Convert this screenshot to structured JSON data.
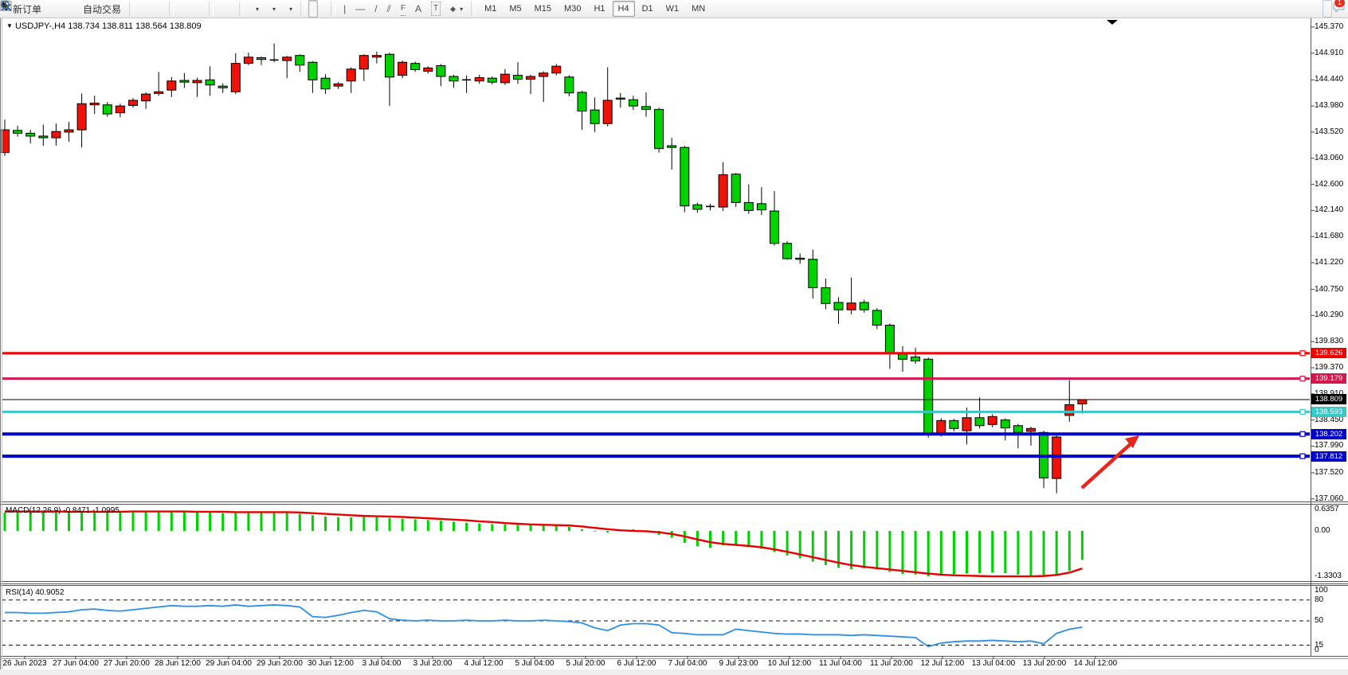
{
  "toolbar": {
    "new_order_label": "新订单",
    "auto_trading_label": "自动交易",
    "timeframes": [
      "M1",
      "M5",
      "M15",
      "M30",
      "H1",
      "H4",
      "D1",
      "W1",
      "MN"
    ],
    "active_timeframe": "H4",
    "notification_count": "1",
    "tool_glyphs": {
      "vertical_line": "|",
      "horizontal_line": "—",
      "trend_line": "/",
      "channel": "⫽",
      "fibonacci": "F",
      "text": "A",
      "text_label": "T",
      "shapes": "◆"
    }
  },
  "chart": {
    "symbol_title": "USDJPY-,H4",
    "ohlc_text": "138.734 138.811 138.564 138.809",
    "title_arrow": "▼",
    "macd_label": "MACD(12,26,9) -0.8471 -1.0995",
    "rsi_label": "RSI(14) 40.9052",
    "price_axis": [
      "145.370",
      "144.910",
      "144.440",
      "143.980",
      "143.520",
      "143.060",
      "142.600",
      "142.140",
      "141.680",
      "141.220",
      "140.750",
      "140.290",
      "139.830",
      "139.370",
      "138.910",
      "138.450",
      "137.990",
      "137.520",
      "137.060"
    ],
    "macd_axis": [
      "0.6357",
      "0.00",
      "-1.3303"
    ],
    "rsi_axis": [
      "100",
      "80",
      "50",
      "15",
      "0"
    ],
    "time_axis": [
      "26 Jun 2023",
      "27 Jun 04:00",
      "27 Jun 20:00",
      "28 Jun 12:00",
      "29 Jun 04:00",
      "29 Jun 20:00",
      "30 Jun 12:00",
      "3 Jul 04:00",
      "3 Jul 20:00",
      "4 Jul 12:00",
      "5 Jul 04:00",
      "5 Jul 20:00",
      "6 Jul 12:00",
      "7 Jul 04:00",
      "9 Jul 23:00",
      "10 Jul 12:00",
      "11 Jul 04:00",
      "11 Jul 20:00",
      "12 Jul 12:00",
      "13 Jul 04:00",
      "13 Jul 20:00",
      "14 Jul 12:00"
    ],
    "price_lines": [
      {
        "price": 139.626,
        "label": "139.626",
        "color": "#f50000",
        "width": 3
      },
      {
        "price": 139.179,
        "label": "139.179",
        "color": "#d6174b",
        "width": 3
      },
      {
        "price": 138.593,
        "label": "138.593",
        "color": "#3cc7c7",
        "width": 3
      },
      {
        "price": 138.202,
        "label": "138.202",
        "color": "#0000c8",
        "width": 4
      },
      {
        "price": 137.812,
        "label": "137.812",
        "color": "#0000c8",
        "width": 4
      }
    ],
    "current_price": {
      "price": 138.809,
      "label": "138.809",
      "color": "#000000"
    }
  },
  "annotation": {
    "type": "arrow-up-right",
    "color": "#e8251b"
  },
  "chart_data": {
    "type": "candlestick",
    "symbol": "USDJPY",
    "timeframe": "H4",
    "ylim": [
      137.06,
      145.37
    ],
    "colors": {
      "bull": "#ef1208",
      "bear": "#00d200",
      "wick": "#000000",
      "macd_hist": "#00d200",
      "macd_signal": "#e80000",
      "rsi_line": "#2a8fe8"
    },
    "candles_ohlc": [
      [
        143.16,
        143.74,
        143.1,
        143.56
      ],
      [
        143.55,
        143.63,
        143.44,
        143.5
      ],
      [
        143.5,
        143.56,
        143.32,
        143.45
      ],
      [
        143.45,
        143.65,
        143.28,
        143.42
      ],
      [
        143.42,
        143.67,
        143.28,
        143.53
      ],
      [
        143.52,
        143.7,
        143.35,
        143.56
      ],
      [
        143.56,
        144.2,
        143.25,
        144.02
      ],
      [
        144.0,
        144.16,
        143.84,
        144.03
      ],
      [
        144.0,
        144.05,
        143.79,
        143.84
      ],
      [
        143.86,
        144.02,
        143.78,
        143.98
      ],
      [
        143.99,
        144.12,
        143.95,
        144.08
      ],
      [
        144.07,
        144.22,
        143.93,
        144.19
      ],
      [
        144.2,
        144.58,
        144.16,
        144.23
      ],
      [
        144.26,
        144.49,
        144.14,
        144.42
      ],
      [
        144.43,
        144.56,
        144.3,
        144.4
      ],
      [
        144.39,
        144.48,
        144.14,
        144.43
      ],
      [
        144.44,
        144.68,
        144.16,
        144.35
      ],
      [
        144.33,
        144.38,
        144.21,
        144.3
      ],
      [
        144.23,
        144.91,
        144.19,
        144.73
      ],
      [
        144.73,
        144.92,
        144.7,
        144.84
      ],
      [
        144.83,
        144.85,
        144.7,
        144.8
      ],
      [
        144.79,
        145.08,
        144.75,
        144.79
      ],
      [
        144.78,
        144.86,
        144.47,
        144.84
      ],
      [
        144.87,
        144.89,
        144.58,
        144.7
      ],
      [
        144.75,
        144.77,
        144.21,
        144.44
      ],
      [
        144.47,
        144.54,
        144.19,
        144.28
      ],
      [
        144.33,
        144.4,
        144.28,
        144.37
      ],
      [
        144.42,
        144.66,
        144.21,
        144.63
      ],
      [
        144.63,
        144.89,
        144.42,
        144.87
      ],
      [
        144.84,
        144.94,
        144.73,
        144.87
      ],
      [
        144.89,
        144.92,
        143.98,
        144.49
      ],
      [
        144.52,
        144.78,
        144.47,
        144.75
      ],
      [
        144.73,
        144.76,
        144.58,
        144.62
      ],
      [
        144.59,
        144.68,
        144.55,
        144.65
      ],
      [
        144.69,
        144.72,
        144.33,
        144.5
      ],
      [
        144.5,
        144.53,
        144.3,
        144.42
      ],
      [
        144.44,
        144.52,
        144.21,
        144.43
      ],
      [
        144.42,
        144.53,
        144.37,
        144.48
      ],
      [
        144.47,
        144.5,
        144.36,
        144.4
      ],
      [
        144.39,
        144.63,
        144.35,
        144.54
      ],
      [
        144.52,
        144.75,
        144.37,
        144.45
      ],
      [
        144.45,
        144.53,
        144.19,
        144.5
      ],
      [
        144.5,
        144.59,
        144.05,
        144.56
      ],
      [
        144.56,
        144.72,
        144.52,
        144.68
      ],
      [
        144.49,
        144.52,
        144.15,
        144.21
      ],
      [
        144.22,
        144.25,
        143.56,
        143.89
      ],
      [
        143.91,
        144.13,
        143.52,
        143.67
      ],
      [
        143.67,
        144.66,
        143.62,
        144.08
      ],
      [
        144.12,
        144.21,
        143.95,
        144.1
      ],
      [
        144.09,
        144.16,
        143.91,
        143.98
      ],
      [
        143.97,
        144.22,
        143.79,
        143.92
      ],
      [
        143.92,
        143.95,
        143.16,
        143.23
      ],
      [
        143.28,
        143.42,
        142.86,
        143.25
      ],
      [
        143.25,
        143.28,
        142.11,
        142.22
      ],
      [
        142.24,
        142.28,
        142.1,
        142.16
      ],
      [
        142.21,
        142.26,
        142.14,
        142.2
      ],
      [
        142.2,
        142.99,
        142.13,
        142.77
      ],
      [
        142.78,
        142.8,
        142.2,
        142.28
      ],
      [
        142.28,
        142.6,
        142.08,
        142.14
      ],
      [
        142.26,
        142.55,
        142.06,
        142.15
      ],
      [
        142.13,
        142.48,
        141.52,
        141.56
      ],
      [
        141.56,
        141.6,
        141.27,
        141.29
      ],
      [
        141.3,
        141.38,
        141.2,
        141.28
      ],
      [
        141.28,
        141.45,
        140.59,
        140.78
      ],
      [
        140.78,
        140.94,
        140.4,
        140.5
      ],
      [
        140.52,
        140.61,
        140.14,
        140.39
      ],
      [
        140.39,
        140.96,
        140.31,
        140.51
      ],
      [
        140.52,
        140.57,
        140.34,
        140.39
      ],
      [
        140.38,
        140.42,
        140.05,
        140.12
      ],
      [
        140.12,
        140.15,
        139.35,
        139.63
      ],
      [
        139.61,
        139.75,
        139.3,
        139.52
      ],
      [
        139.56,
        139.72,
        139.44,
        139.49
      ],
      [
        139.52,
        139.55,
        138.14,
        138.21
      ],
      [
        138.21,
        138.48,
        138.16,
        138.44
      ],
      [
        138.44,
        138.47,
        138.25,
        138.3
      ],
      [
        138.26,
        138.67,
        138.02,
        138.49
      ],
      [
        138.49,
        138.85,
        138.3,
        138.35
      ],
      [
        138.37,
        138.55,
        138.32,
        138.51
      ],
      [
        138.45,
        138.48,
        138.09,
        138.31
      ],
      [
        138.35,
        138.38,
        137.95,
        138.23
      ],
      [
        138.25,
        138.33,
        138.0,
        138.3
      ],
      [
        138.23,
        138.26,
        137.25,
        137.43
      ],
      [
        137.42,
        138.2,
        137.16,
        138.15
      ],
      [
        138.53,
        139.15,
        138.42,
        138.72
      ],
      [
        138.734,
        138.811,
        138.564,
        138.809
      ]
    ],
    "macd": {
      "ylim": [
        -1.3303,
        0.6357
      ],
      "histogram": [
        0.54,
        0.55,
        0.55,
        0.54,
        0.53,
        0.54,
        0.57,
        0.58,
        0.57,
        0.56,
        0.57,
        0.58,
        0.58,
        0.57,
        0.56,
        0.55,
        0.54,
        0.52,
        0.55,
        0.57,
        0.56,
        0.55,
        0.53,
        0.5,
        0.46,
        0.42,
        0.4,
        0.4,
        0.41,
        0.42,
        0.38,
        0.36,
        0.34,
        0.32,
        0.3,
        0.27,
        0.24,
        0.22,
        0.2,
        0.19,
        0.18,
        0.17,
        0.16,
        0.16,
        0.12,
        0.05,
        -0.02,
        -0.05,
        0.02,
        0.05,
        0.02,
        -0.12,
        -0.2,
        -0.35,
        -0.45,
        -0.5,
        -0.42,
        -0.4,
        -0.45,
        -0.52,
        -0.62,
        -0.72,
        -0.8,
        -0.9,
        -1.0,
        -1.08,
        -1.12,
        -1.1,
        -1.13,
        -1.2,
        -1.26,
        -1.28,
        -1.33,
        -1.3,
        -1.27,
        -1.25,
        -1.24,
        -1.22,
        -1.24,
        -1.28,
        -1.31,
        -1.33,
        -1.28,
        -1.17,
        -0.85
      ],
      "signal": [
        0.57,
        0.57,
        0.57,
        0.57,
        0.57,
        0.56,
        0.56,
        0.56,
        0.56,
        0.56,
        0.57,
        0.57,
        0.57,
        0.57,
        0.57,
        0.56,
        0.56,
        0.56,
        0.55,
        0.55,
        0.55,
        0.55,
        0.55,
        0.54,
        0.52,
        0.5,
        0.48,
        0.46,
        0.44,
        0.43,
        0.42,
        0.41,
        0.39,
        0.37,
        0.35,
        0.33,
        0.31,
        0.28,
        0.26,
        0.23,
        0.21,
        0.19,
        0.18,
        0.17,
        0.16,
        0.13,
        0.09,
        0.05,
        0.02,
        0.0,
        -0.01,
        -0.04,
        -0.09,
        -0.16,
        -0.25,
        -0.33,
        -0.38,
        -0.41,
        -0.44,
        -0.48,
        -0.54,
        -0.61,
        -0.69,
        -0.77,
        -0.85,
        -0.93,
        -1.0,
        -1.05,
        -1.09,
        -1.13,
        -1.17,
        -1.21,
        -1.25,
        -1.28,
        -1.3,
        -1.31,
        -1.32,
        -1.33,
        -1.33,
        -1.33,
        -1.33,
        -1.32,
        -1.29,
        -1.22,
        -1.1
      ]
    },
    "rsi": {
      "ylim": [
        0,
        100
      ],
      "levels": [
        80,
        50,
        15
      ],
      "values": [
        62,
        62,
        61,
        61,
        62,
        63,
        66,
        67,
        65,
        64,
        66,
        68,
        70,
        72,
        71,
        71,
        72,
        71,
        73,
        71,
        72,
        73,
        72,
        70,
        56,
        55,
        58,
        62,
        65,
        63,
        53,
        51,
        50,
        51,
        50,
        50,
        51,
        50,
        50,
        51,
        50,
        50,
        51,
        50,
        49,
        47,
        40,
        36,
        44,
        46,
        46,
        44,
        33,
        32,
        30,
        30,
        30,
        38,
        36,
        34,
        32,
        31,
        31,
        30,
        30,
        30,
        29,
        30,
        29,
        28,
        27,
        26,
        13,
        18,
        20,
        21,
        21,
        22,
        21,
        20,
        21,
        17,
        32,
        38,
        41
      ]
    }
  }
}
